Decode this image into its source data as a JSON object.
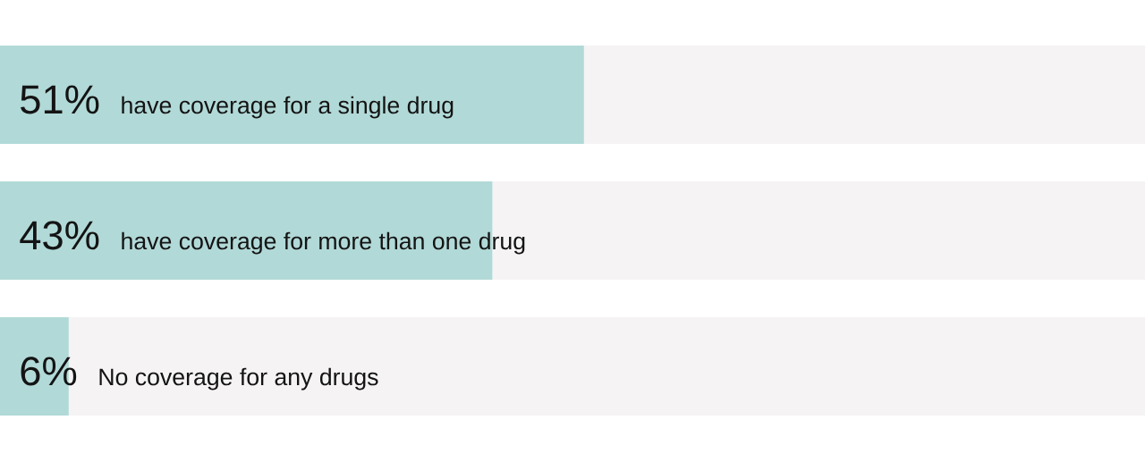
{
  "chart_data": {
    "type": "bar",
    "orientation": "horizontal",
    "stacked": true,
    "categories": [
      "have coverage for a single drug",
      "have coverage for more than one drug",
      "No coverage for any drugs"
    ],
    "series": [
      {
        "color": "#b1d9d7",
        "values": [
          51,
          43,
          6
        ],
        "value_labels": [
          "51%",
          "43%",
          "6%"
        ]
      },
      {
        "color": "#f5f3f4",
        "values": [
          49,
          57,
          94
        ]
      }
    ],
    "xlim": [
      0,
      100
    ],
    "tick_labels": "y"
  }
}
